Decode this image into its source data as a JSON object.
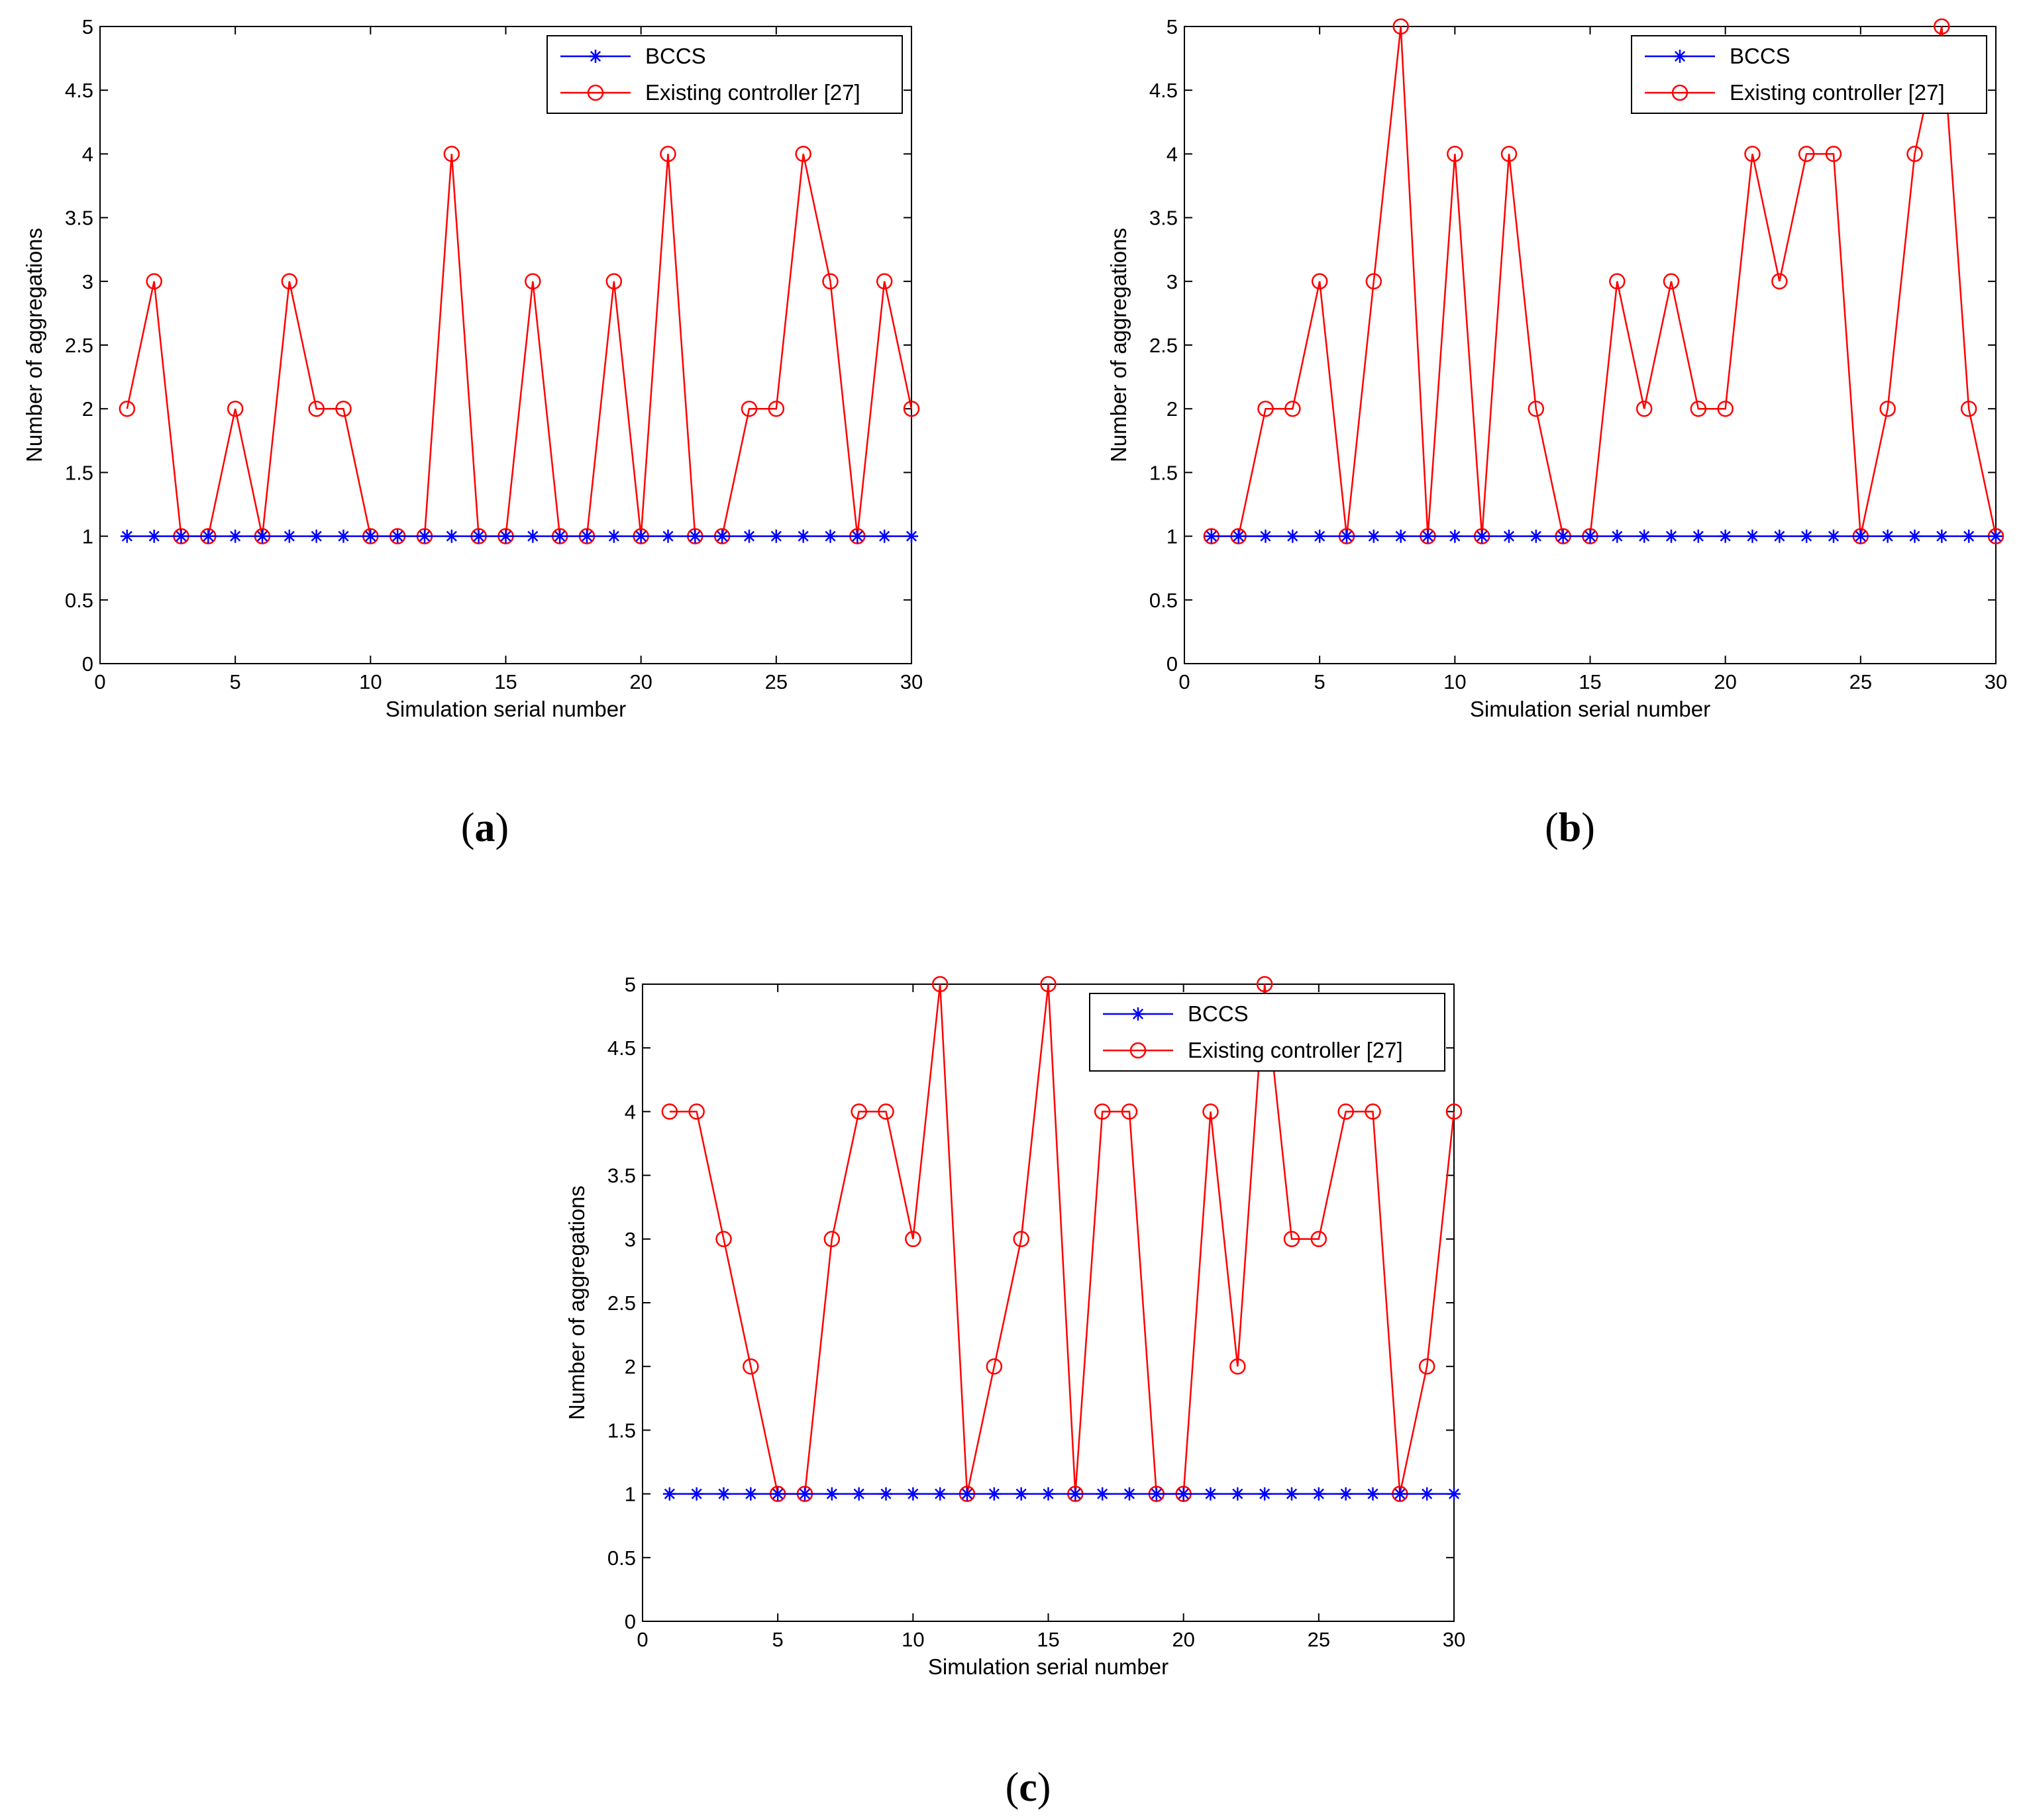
{
  "chart_data": [
    {
      "type": "line",
      "panel": "a",
      "caption_open": "(",
      "caption_letter": "a",
      "caption_close": ")",
      "xlabel": "Simulation serial number",
      "ylabel": "Number of aggregations",
      "xlim": [
        0,
        30
      ],
      "ylim": [
        0,
        5
      ],
      "xticks": [
        "0",
        "5",
        "10",
        "15",
        "20",
        "25",
        "30"
      ],
      "yticks": [
        "0",
        "0.5",
        "1",
        "1.5",
        "2",
        "2.5",
        "3",
        "3.5",
        "4",
        "4.5",
        "5"
      ],
      "legend_position": "top-right",
      "x": [
        1,
        2,
        3,
        4,
        5,
        6,
        7,
        8,
        9,
        10,
        11,
        12,
        13,
        14,
        15,
        16,
        17,
        18,
        19,
        20,
        21,
        22,
        23,
        24,
        25,
        26,
        27,
        28,
        29,
        30
      ],
      "series": [
        {
          "name": "BCCS",
          "color": "#0000ff",
          "marker": "star",
          "values": [
            1,
            1,
            1,
            1,
            1,
            1,
            1,
            1,
            1,
            1,
            1,
            1,
            1,
            1,
            1,
            1,
            1,
            1,
            1,
            1,
            1,
            1,
            1,
            1,
            1,
            1,
            1,
            1,
            1,
            1
          ]
        },
        {
          "name": "Existing controller [27]",
          "color": "#ff0000",
          "marker": "circle",
          "values": [
            2,
            3,
            1,
            1,
            2,
            1,
            3,
            2,
            2,
            1,
            1,
            1,
            4,
            1,
            1,
            3,
            1,
            1,
            3,
            1,
            4,
            1,
            1,
            2,
            2,
            4,
            3,
            1,
            3,
            2
          ]
        }
      ]
    },
    {
      "type": "line",
      "panel": "b",
      "caption_open": "(",
      "caption_letter": "b",
      "caption_close": ")",
      "xlabel": "Simulation serial number",
      "ylabel": "Number of aggregations",
      "xlim": [
        0,
        30
      ],
      "ylim": [
        0,
        5
      ],
      "xticks": [
        "0",
        "5",
        "10",
        "15",
        "20",
        "25",
        "30"
      ],
      "yticks": [
        "0",
        "0.5",
        "1",
        "1.5",
        "2",
        "2.5",
        "3",
        "3.5",
        "4",
        "4.5",
        "5"
      ],
      "legend_position": "top-right",
      "x": [
        1,
        2,
        3,
        4,
        5,
        6,
        7,
        8,
        9,
        10,
        11,
        12,
        13,
        14,
        15,
        16,
        17,
        18,
        19,
        20,
        21,
        22,
        23,
        24,
        25,
        26,
        27,
        28,
        29,
        30
      ],
      "series": [
        {
          "name": "BCCS",
          "color": "#0000ff",
          "marker": "star",
          "values": [
            1,
            1,
            1,
            1,
            1,
            1,
            1,
            1,
            1,
            1,
            1,
            1,
            1,
            1,
            1,
            1,
            1,
            1,
            1,
            1,
            1,
            1,
            1,
            1,
            1,
            1,
            1,
            1,
            1,
            1
          ]
        },
        {
          "name": "Existing controller [27]",
          "color": "#ff0000",
          "marker": "circle",
          "values": [
            1,
            1,
            2,
            2,
            3,
            1,
            3,
            5,
            1,
            4,
            1,
            4,
            2,
            1,
            1,
            3,
            2,
            3,
            2,
            2,
            4,
            3,
            4,
            4,
            1,
            2,
            4,
            5,
            2,
            1
          ]
        }
      ]
    },
    {
      "type": "line",
      "panel": "c",
      "caption_open": "(",
      "caption_letter": "c",
      "caption_close": ")",
      "xlabel": "Simulation serial number",
      "ylabel": "Number of aggregations",
      "xlim": [
        0,
        30
      ],
      "ylim": [
        0,
        5
      ],
      "xticks": [
        "0",
        "5",
        "10",
        "15",
        "20",
        "25",
        "30"
      ],
      "yticks": [
        "0",
        "0.5",
        "1",
        "1.5",
        "2",
        "2.5",
        "3",
        "3.5",
        "4",
        "4.5",
        "5"
      ],
      "legend_position": "top-right",
      "x": [
        1,
        2,
        3,
        4,
        5,
        6,
        7,
        8,
        9,
        10,
        11,
        12,
        13,
        14,
        15,
        16,
        17,
        18,
        19,
        20,
        21,
        22,
        23,
        24,
        25,
        26,
        27,
        28,
        29,
        30
      ],
      "series": [
        {
          "name": "BCCS",
          "color": "#0000ff",
          "marker": "star",
          "values": [
            1,
            1,
            1,
            1,
            1,
            1,
            1,
            1,
            1,
            1,
            1,
            1,
            1,
            1,
            1,
            1,
            1,
            1,
            1,
            1,
            1,
            1,
            1,
            1,
            1,
            1,
            1,
            1,
            1,
            1
          ]
        },
        {
          "name": "Existing controller [27]",
          "color": "#ff0000",
          "marker": "circle",
          "values": [
            4,
            4,
            3,
            2,
            1,
            1,
            3,
            4,
            4,
            3,
            5,
            1,
            2,
            3,
            5,
            1,
            4,
            4,
            1,
            1,
            4,
            2,
            5,
            3,
            3,
            4,
            4,
            1,
            2,
            4
          ]
        }
      ]
    }
  ]
}
